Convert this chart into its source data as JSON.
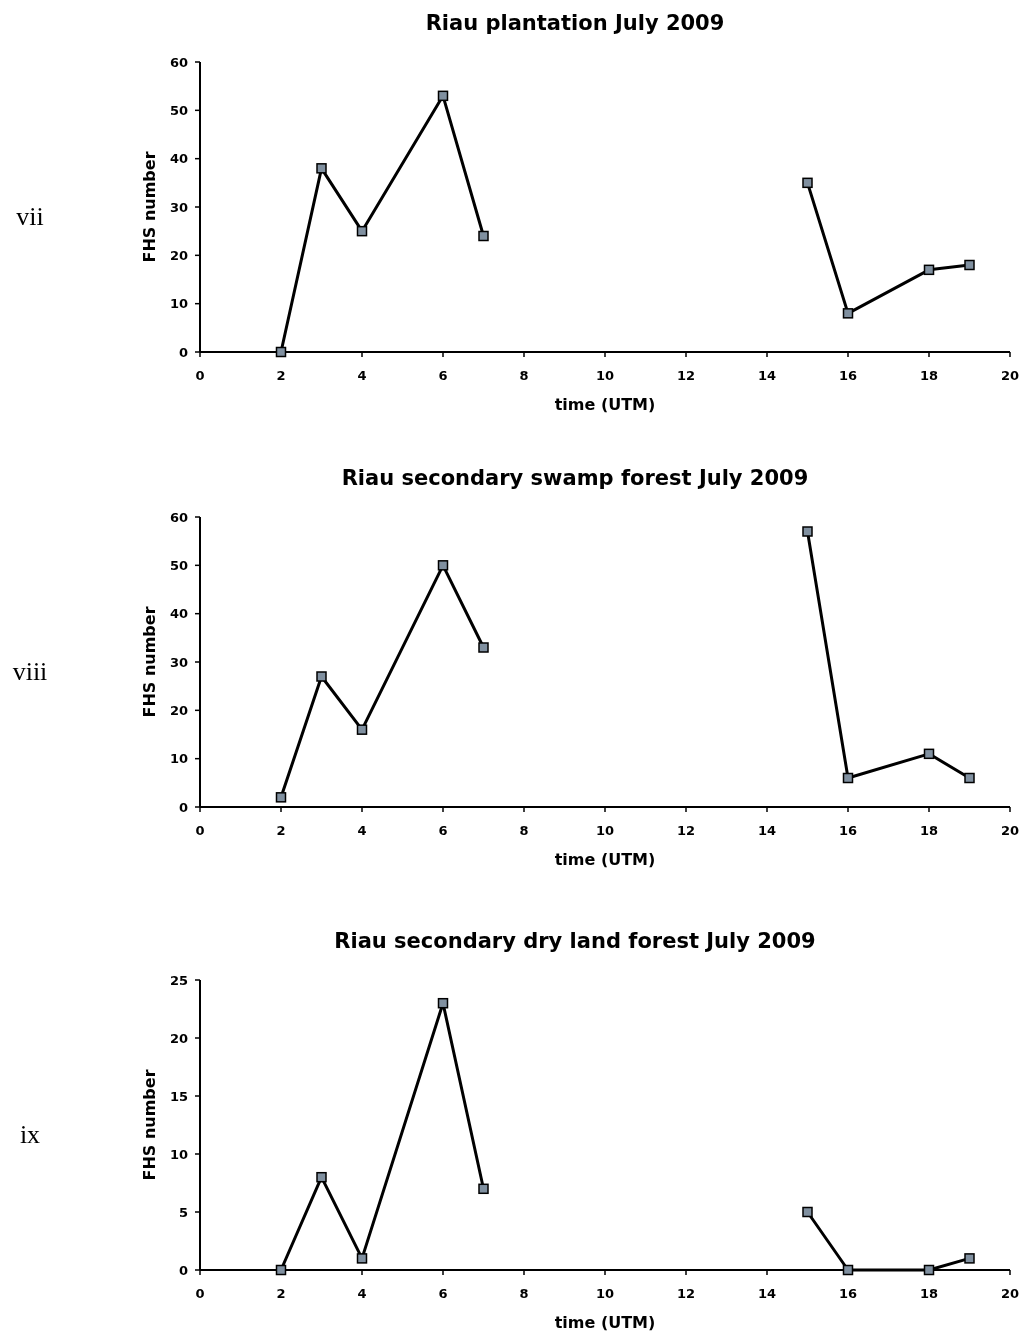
{
  "chart_data": [
    {
      "type": "line",
      "title": "Riau plantation  July 2009",
      "xlabel": "time (UTM)",
      "ylabel": "FHS number",
      "annotations": [
        "vii"
      ],
      "xlim": [
        0,
        20
      ],
      "xticks": [
        0,
        2,
        4,
        6,
        8,
        10,
        12,
        14,
        16,
        18,
        20
      ],
      "ylim": [
        0,
        60
      ],
      "yticks": [
        0,
        10,
        20,
        30,
        40,
        50,
        60
      ],
      "grid": false,
      "marker": "square",
      "line_style": "solid",
      "series": [
        {
          "color": "#000000",
          "x": [
            2,
            3,
            4,
            6,
            7
          ],
          "values": [
            0,
            38,
            25,
            53,
            24
          ]
        },
        {
          "color": "#000000",
          "x": [
            15,
            16,
            18,
            19
          ],
          "values": [
            35,
            8,
            17,
            18
          ]
        }
      ]
    },
    {
      "type": "line",
      "title": "Riau secondary swamp forest July 2009",
      "xlabel": "time (UTM)",
      "ylabel": "FHS number",
      "annotations": [
        "viii"
      ],
      "xlim": [
        0,
        20
      ],
      "xticks": [
        0,
        2,
        4,
        6,
        8,
        10,
        12,
        14,
        16,
        18,
        20
      ],
      "ylim": [
        0,
        60
      ],
      "yticks": [
        0,
        10,
        20,
        30,
        40,
        50,
        60
      ],
      "grid": false,
      "marker": "square",
      "line_style": "solid",
      "series": [
        {
          "color": "#000000",
          "x": [
            2,
            3,
            4,
            6,
            7
          ],
          "values": [
            2,
            27,
            16,
            50,
            33
          ]
        },
        {
          "color": "#000000",
          "x": [
            15,
            16,
            18,
            19
          ],
          "values": [
            57,
            6,
            11,
            6
          ]
        }
      ]
    },
    {
      "type": "line",
      "title": "Riau secondary dry land forest July 2009",
      "xlabel": "time (UTM)",
      "ylabel": "FHS number",
      "annotations": [
        "ix"
      ],
      "xlim": [
        0,
        20
      ],
      "xticks": [
        0,
        2,
        4,
        6,
        8,
        10,
        12,
        14,
        16,
        18,
        20
      ],
      "ylim": [
        0,
        25
      ],
      "yticks": [
        0,
        5,
        10,
        15,
        20,
        25
      ],
      "grid": false,
      "marker": "square",
      "line_style": "solid",
      "series": [
        {
          "color": "#000000",
          "x": [
            2,
            3,
            4,
            6,
            7
          ],
          "values": [
            0,
            8,
            1,
            23,
            7
          ]
        },
        {
          "color": "#000000",
          "x": [
            15,
            16,
            18,
            19
          ],
          "values": [
            5,
            0,
            0,
            1
          ]
        }
      ]
    }
  ]
}
